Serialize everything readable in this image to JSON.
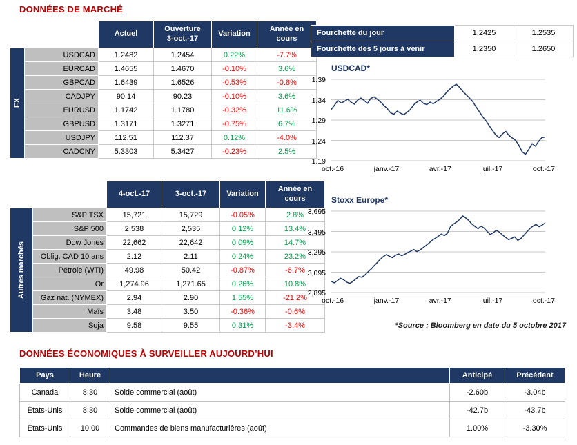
{
  "page": {
    "market_title": "DONNÉES DE MARCHÉ",
    "econ_title": "DONNÉES ÉCONOMIQUES À SURVEILLER AUJOURD’HUI",
    "source_note": "*Source : Bloomberg en date du  5 octobre 2017"
  },
  "colors": {
    "navy": "#1F3864",
    "title_red": "#C00000",
    "positive_green": "#00A14B",
    "negative_red": "#FF0000",
    "label_gray": "#BFBFBF"
  },
  "fx_table": {
    "group_label": "FX",
    "headers": [
      "Actuel",
      "Ouverture\n3-oct.-17",
      "Variation",
      "Année en\ncours"
    ],
    "rows": [
      {
        "label": "USDCAD",
        "values": [
          "1.2482",
          "1.2454",
          "0.22%",
          "-7.7%"
        ]
      },
      {
        "label": "EURCAD",
        "values": [
          "1.4655",
          "1.4670",
          "-0.10%",
          "3.6%"
        ]
      },
      {
        "label": "GBPCAD",
        "values": [
          "1.6439",
          "1.6526",
          "-0.53%",
          "-0.8%"
        ]
      },
      {
        "label": "CADJPY",
        "values": [
          "90.14",
          "90.23",
          "-0.10%",
          "3.6%"
        ]
      },
      {
        "label": "EURUSD",
        "values": [
          "1.1742",
          "1.1780",
          "-0.32%",
          "11.6%"
        ]
      },
      {
        "label": "GBPUSD",
        "values": [
          "1.3171",
          "1.3271",
          "-0.75%",
          "6.7%"
        ]
      },
      {
        "label": "USDJPY",
        "values": [
          "112.51",
          "112.37",
          "0.12%",
          "-4.0%"
        ]
      },
      {
        "label": "CADCNY",
        "values": [
          "5.3303",
          "5.3427",
          "-0.23%",
          "2.5%"
        ]
      }
    ]
  },
  "markets_table": {
    "group_label": "Autres marchés",
    "headers": [
      "4-oct.-17",
      "3-oct.-17",
      "Variation",
      "Année en\ncours"
    ],
    "rows": [
      {
        "label": "S&P TSX",
        "values": [
          "15,721",
          "15,729",
          "-0.05%",
          "2.8%"
        ]
      },
      {
        "label": "S&P 500",
        "values": [
          "2,538",
          "2,535",
          "0.12%",
          "13.4%"
        ]
      },
      {
        "label": "Dow Jones",
        "values": [
          "22,662",
          "22,642",
          "0.09%",
          "14.7%"
        ]
      },
      {
        "label": "Oblig. CAD 10 ans",
        "values": [
          "2.12",
          "2.11",
          "0.24%",
          "23.2%"
        ]
      },
      {
        "label": "Pétrole (WTI)",
        "values": [
          "49.98",
          "50.42",
          "-0.87%",
          "-6.7%"
        ]
      },
      {
        "label": "Or",
        "values": [
          "1,274.96",
          "1,271.65",
          "0.26%",
          "10.8%"
        ]
      },
      {
        "label": "Gaz nat. (NYMEX)",
        "values": [
          "2.94",
          "2.90",
          "1.55%",
          "-21.2%"
        ]
      },
      {
        "label": "Maïs",
        "values": [
          "3.48",
          "3.50",
          "-0.36%",
          "-0.6%"
        ]
      },
      {
        "label": "Soja",
        "values": [
          "9.58",
          "9.55",
          "0.31%",
          "-3.4%"
        ]
      }
    ]
  },
  "range_table": {
    "rows": [
      {
        "label": "Fourchette du jour",
        "values": [
          "1.2425",
          "1.2535"
        ]
      },
      {
        "label": "Fourchette des 5 jours à venir",
        "values": [
          "1.2350",
          "1.2650"
        ]
      }
    ]
  },
  "econ_table": {
    "headers": [
      "Pays",
      "Heure",
      "",
      "Anticipé",
      "Précédent"
    ],
    "rows": [
      {
        "country": "Canada",
        "time": "8:30",
        "event": "Solde commercial (août)",
        "anticipated": "-2.60b",
        "previous": "-3.04b"
      },
      {
        "country": "États-Unis",
        "time": "8:30",
        "event": "Solde commercial (août)",
        "anticipated": "-42.7b",
        "previous": "-43.7b"
      },
      {
        "country": "États-Unis",
        "time": "10:00",
        "event": "Commandes de biens manufacturières (août)",
        "anticipated": "1.00%",
        "previous": "-3.30%"
      }
    ]
  },
  "chart_data": [
    {
      "type": "line",
      "title": "USDCAD*",
      "legend": "none",
      "grid": "horizontal",
      "x_ticks": [
        "oct.-16",
        "janv.-17",
        "avr.-17",
        "juil.-17",
        "oct.-17"
      ],
      "y_ticks": [
        "1.39",
        "1.34",
        "1.29",
        "1.24",
        "1.19"
      ],
      "ylim": [
        1.19,
        1.39
      ],
      "values": [
        1.316,
        1.327,
        1.338,
        1.332,
        1.336,
        1.341,
        1.334,
        1.329,
        1.339,
        1.344,
        1.338,
        1.331,
        1.343,
        1.347,
        1.341,
        1.334,
        1.326,
        1.318,
        1.308,
        1.304,
        1.312,
        1.307,
        1.303,
        1.309,
        1.316,
        1.327,
        1.334,
        1.339,
        1.331,
        1.328,
        1.334,
        1.33,
        1.336,
        1.341,
        1.348,
        1.358,
        1.366,
        1.373,
        1.378,
        1.37,
        1.36,
        1.352,
        1.344,
        1.335,
        1.322,
        1.31,
        1.298,
        1.288,
        1.276,
        1.264,
        1.253,
        1.247,
        1.256,
        1.262,
        1.252,
        1.246,
        1.24,
        1.228,
        1.212,
        1.206,
        1.218,
        1.232,
        1.226,
        1.238,
        1.247,
        1.2482
      ]
    },
    {
      "type": "line",
      "title": "Stoxx Europe*",
      "legend": "none",
      "grid": "horizontal",
      "x_ticks": [
        "oct.-16",
        "janv.-17",
        "avr.-17",
        "juil.-17",
        "oct.-17"
      ],
      "y_ticks": [
        "3,695",
        "3,495",
        "3,295",
        "3,095",
        "2,895"
      ],
      "ylim": [
        2895,
        3695
      ],
      "values": [
        3005,
        2990,
        3012,
        3035,
        3022,
        2998,
        2985,
        3002,
        3028,
        3052,
        3045,
        3068,
        3098,
        3125,
        3158,
        3188,
        3222,
        3248,
        3268,
        3252,
        3238,
        3262,
        3275,
        3258,
        3270,
        3288,
        3302,
        3318,
        3298,
        3312,
        3335,
        3358,
        3382,
        3408,
        3428,
        3448,
        3470,
        3455,
        3478,
        3542,
        3568,
        3588,
        3612,
        3648,
        3628,
        3602,
        3568,
        3545,
        3522,
        3548,
        3528,
        3495,
        3465,
        3482,
        3508,
        3488,
        3462,
        3438,
        3415,
        3428,
        3442,
        3408,
        3425,
        3458,
        3492,
        3525,
        3548,
        3565,
        3542,
        3558,
        3580
      ]
    }
  ]
}
